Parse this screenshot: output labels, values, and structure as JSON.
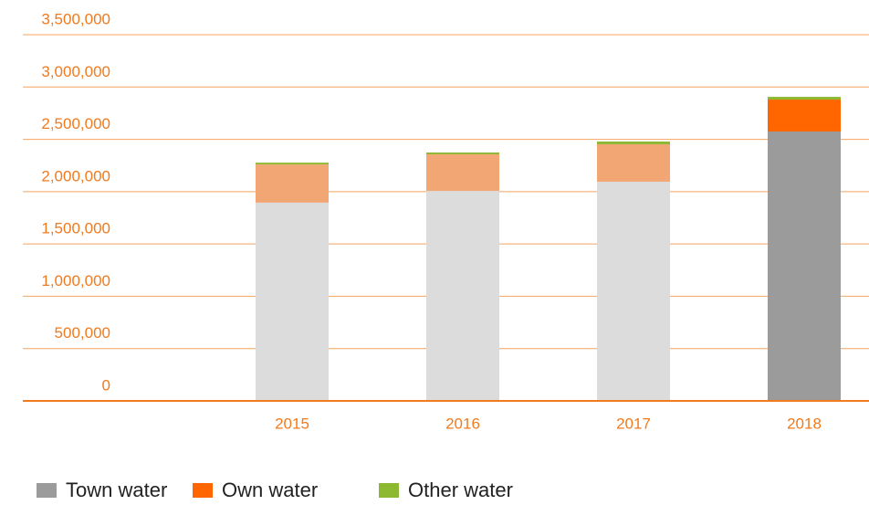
{
  "chart_data": {
    "type": "stacked_bar",
    "categories": [
      "2015",
      "2016",
      "2017",
      "2018"
    ],
    "series": [
      {
        "name": "Town water",
        "color": "#9b9b9b",
        "point_colors": [
          "#dcdcdc",
          "#dcdcdc",
          "#dcdcdc",
          "#9b9b9b"
        ],
        "values": [
          1895000,
          2007000,
          2095000,
          2575000
        ]
      },
      {
        "name": "Own water",
        "color": "#ff6600",
        "point_colors": [
          "#f2a674",
          "#f2a674",
          "#f2a674",
          "#ff6600"
        ],
        "values": [
          365000,
          350000,
          358000,
          305000
        ]
      },
      {
        "name": "Other water",
        "color": "#8db832",
        "point_colors": [
          "#8db832",
          "#8db832",
          "#8db832",
          "#8db832"
        ],
        "values": [
          17000,
          17000,
          26000,
          26000
        ]
      }
    ],
    "ylim": [
      0,
      3500000
    ],
    "yticks": [
      0,
      {
        "value": 500000,
        "label": "500,000"
      },
      {
        "value": 1000000,
        "label": "1,000,000"
      },
      {
        "value": 1500000,
        "label": "1,500,000"
      },
      {
        "value": 2000000,
        "label": "2,000,000"
      },
      {
        "value": 2500000,
        "label": "2,500,000"
      },
      {
        "value": 3000000,
        "label": "3,000,000"
      },
      {
        "value": 3500000,
        "label": "3,500,000"
      }
    ],
    "grid": true
  }
}
